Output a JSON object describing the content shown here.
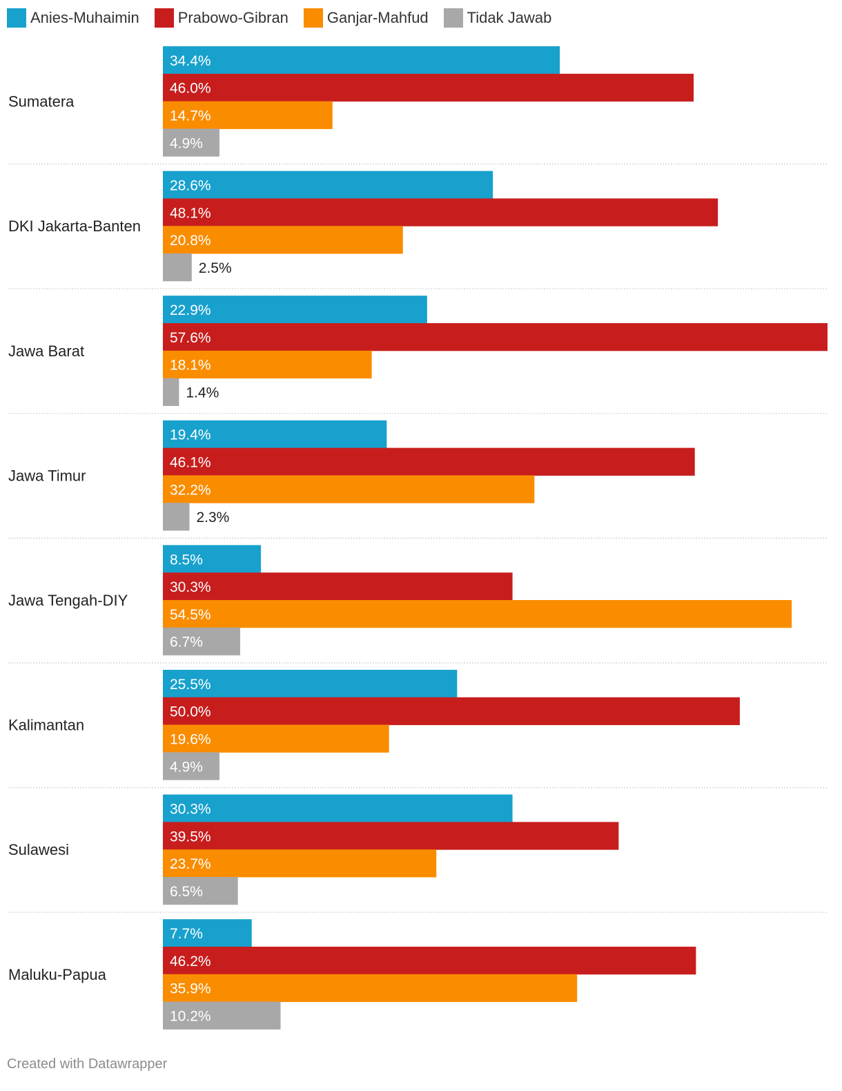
{
  "legend": [
    {
      "name": "Anies-Muhaimin",
      "color": "#18a1cd"
    },
    {
      "name": "Prabowo-Gibran",
      "color": "#c71e1d"
    },
    {
      "name": "Ganjar-Mahfud",
      "color": "#fa8c00"
    },
    {
      "name": "Tidak Jawab",
      "color": "#a8a8a8"
    }
  ],
  "chart_data": {
    "type": "bar",
    "orientation": "horizontal",
    "grouped": true,
    "categories": [
      "Sumatera",
      "DKI Jakarta-Banten",
      "Jawa Barat",
      "Jawa Timur",
      "Jawa Tengah-DIY",
      "Kalimantan",
      "Sulawesi",
      "Maluku-Papua"
    ],
    "series": [
      {
        "name": "Anies-Muhaimin",
        "color": "#18a1cd",
        "values": [
          34.4,
          28.6,
          22.9,
          19.4,
          8.5,
          25.5,
          30.3,
          7.7
        ],
        "labels": [
          "34.4%",
          "28.6%",
          "22.9%",
          "19.4%",
          "8.5%",
          "25.5%",
          "30.3%",
          "7.7%"
        ]
      },
      {
        "name": "Prabowo-Gibran",
        "color": "#c71e1d",
        "values": [
          46.0,
          48.1,
          57.6,
          46.1,
          30.3,
          50.0,
          39.5,
          46.2
        ],
        "labels": [
          "46.0%",
          "48.1%",
          "57.6%",
          "46.1%",
          "30.3%",
          "50.0%",
          "39.5%",
          "46.2%"
        ]
      },
      {
        "name": "Ganjar-Mahfud",
        "color": "#fa8c00",
        "values": [
          14.7,
          20.8,
          18.1,
          32.2,
          54.5,
          19.6,
          23.7,
          35.9
        ],
        "labels": [
          "14.7%",
          "20.8%",
          "18.1%",
          "32.2%",
          "54.5%",
          "19.6%",
          "23.7%",
          "35.9%"
        ]
      },
      {
        "name": "Tidak Jawab",
        "color": "#a8a8a8",
        "values": [
          4.9,
          2.5,
          1.4,
          2.3,
          6.7,
          4.9,
          6.5,
          10.2
        ],
        "labels": [
          "4.9%",
          "2.5%",
          "1.4%",
          "2.3%",
          "6.7%",
          "4.9%",
          "6.5%",
          "10.2%"
        ]
      }
    ],
    "xlim": [
      0,
      57.6
    ],
    "grid": false,
    "legend_position": "top-left",
    "value_labels": "inside-bar"
  },
  "footer": {
    "credit": "Created with Datawrapper"
  }
}
